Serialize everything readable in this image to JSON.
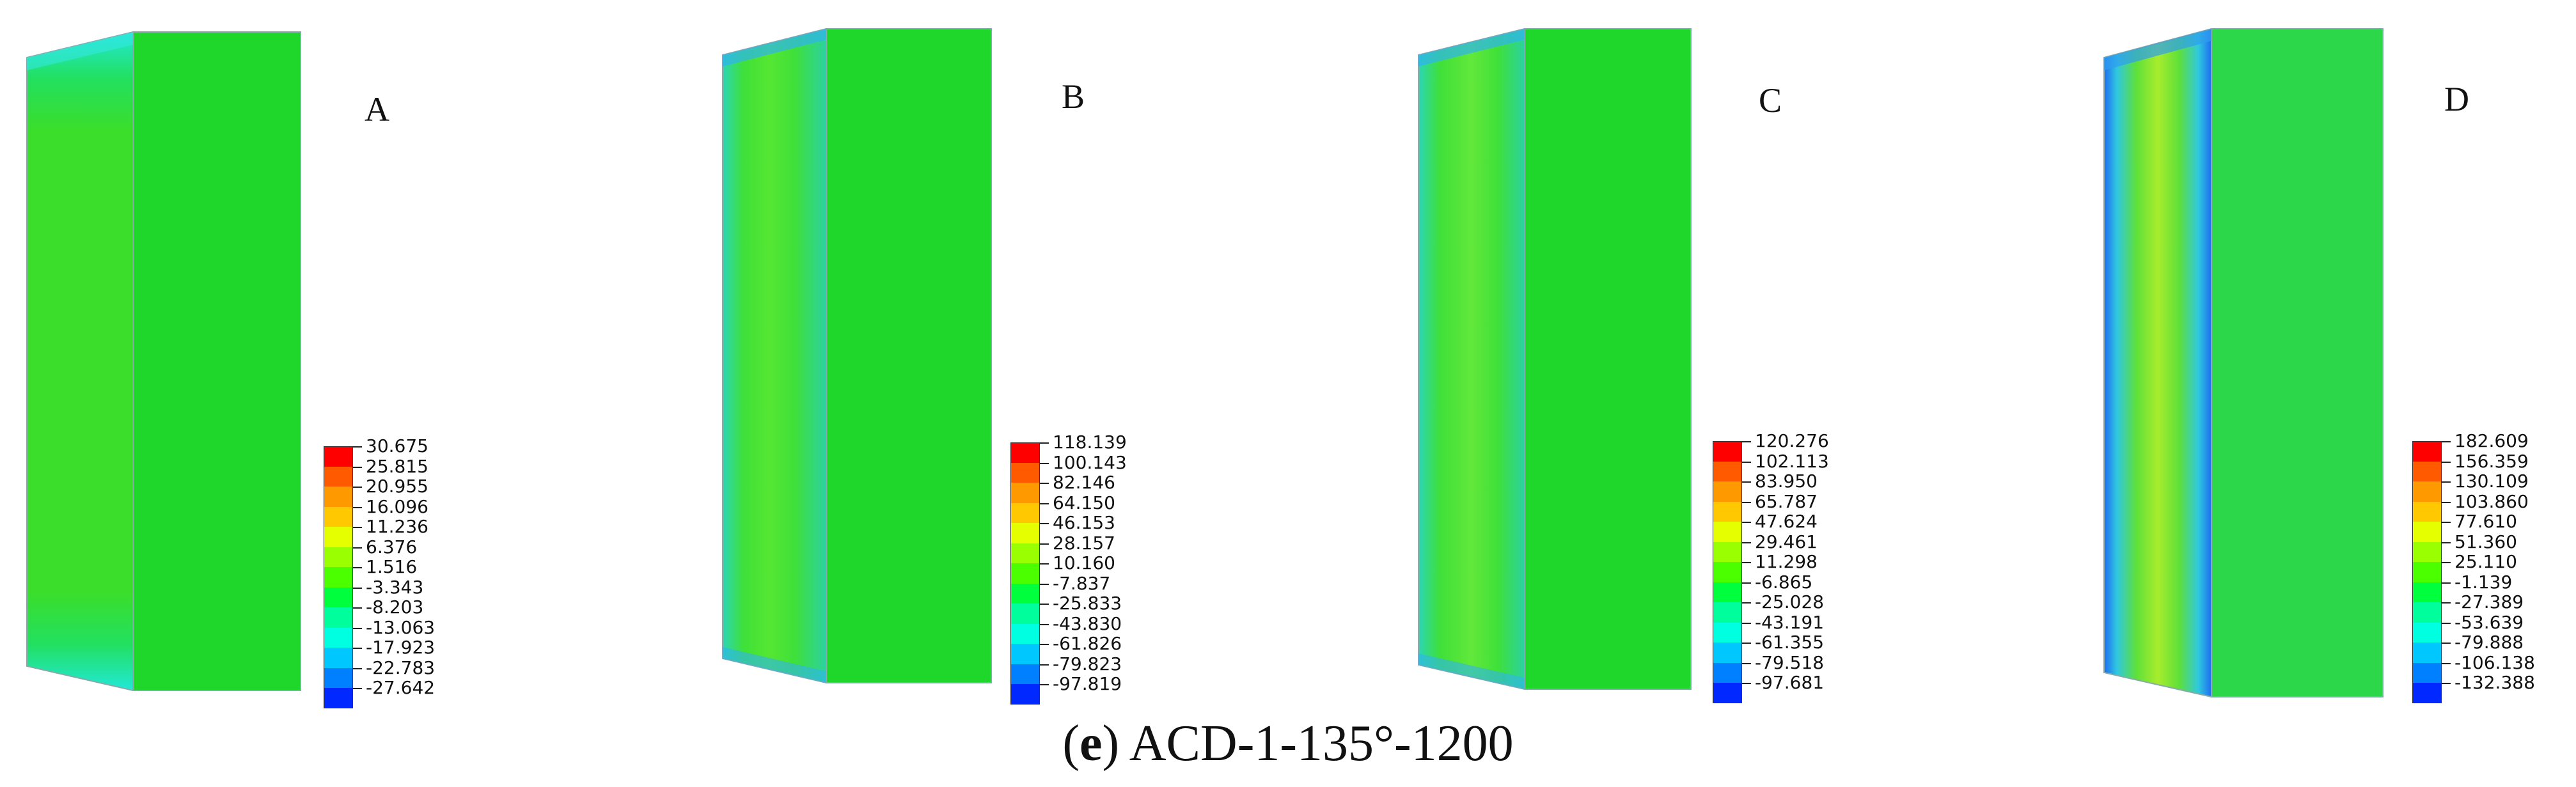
{
  "legend_colors": [
    "#ff0000",
    "#ff5a00",
    "#ff9900",
    "#ffc800",
    "#e6ff00",
    "#9aff00",
    "#4cff00",
    "#00ff3c",
    "#00ff9c",
    "#00ffe1",
    "#00c8ff",
    "#0080ff",
    "#0028ff"
  ],
  "panels": [
    {
      "label": "A",
      "legend_values": [
        "30.675",
        "25.815",
        "20.955",
        "16.096",
        "11.236",
        "6.376",
        "1.516",
        "-3.343",
        "-8.203",
        "-13.063",
        "-17.923",
        "-22.783",
        "-27.642"
      ]
    },
    {
      "label": "B",
      "legend_values": [
        "118.139",
        "100.143",
        "82.146",
        "64.150",
        "46.153",
        "28.157",
        "10.160",
        "-7.837",
        "-25.833",
        "-43.830",
        "-61.826",
        "-79.823",
        "-97.819"
      ]
    },
    {
      "label": "C",
      "legend_values": [
        "120.276",
        "102.113",
        "83.950",
        "65.787",
        "47.624",
        "29.461",
        "11.298",
        "-6.865",
        "-25.028",
        "-43.191",
        "-61.355",
        "-79.518",
        "-97.681"
      ]
    },
    {
      "label": "D",
      "legend_values": [
        "182.609",
        "156.359",
        "130.109",
        "103.860",
        "77.610",
        "51.360",
        "25.110",
        "-1.139",
        "-27.389",
        "-53.639",
        "-79.888",
        "-106.138",
        "-132.388"
      ]
    }
  ],
  "caption": {
    "letter": "e",
    "text": "ACD-1-135°-1200"
  }
}
